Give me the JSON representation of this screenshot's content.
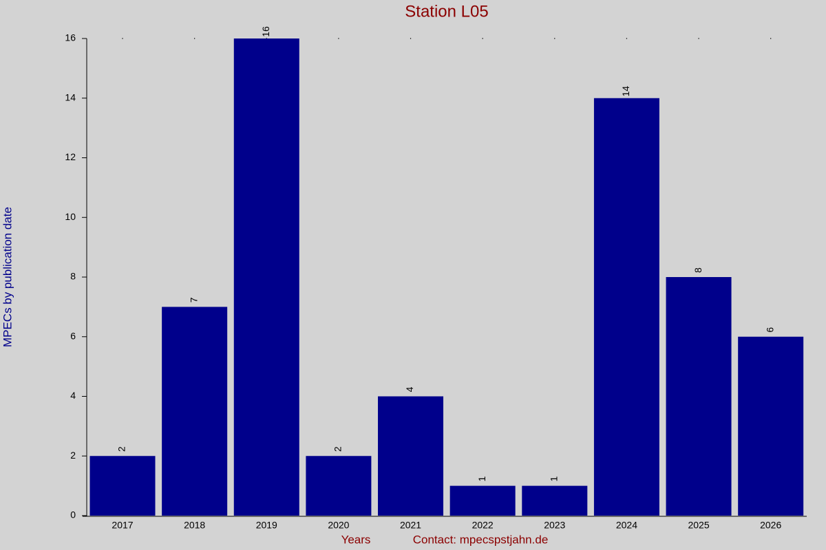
{
  "chart_data": {
    "type": "bar",
    "title": "Station L05",
    "x_label": "Years",
    "contact": "Contact: mpecspstjahn.de",
    "y_label": "MPECs by publication date",
    "categories": [
      "2017",
      "2018",
      "2019",
      "2020",
      "2021",
      "2022",
      "2023",
      "2024",
      "2025",
      "2026"
    ],
    "values": [
      2,
      7,
      16,
      2,
      4,
      1,
      1,
      14,
      8,
      6
    ],
    "color": "#00008b",
    "ylim": [
      0,
      16
    ],
    "yticks": [
      0,
      2,
      4,
      6,
      8,
      10,
      12,
      14,
      16
    ]
  }
}
